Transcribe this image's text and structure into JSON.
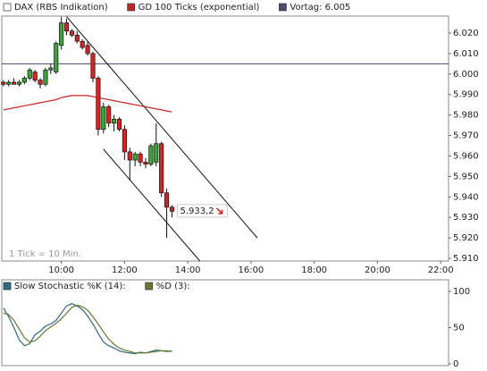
{
  "chart_data": [
    {
      "type": "candlestick",
      "ohlc": {
        "name": "DAX (RBS Indikation)",
        "up_color": "#33a833",
        "down_color": "#e02020",
        "open": [
          5996,
          5995,
          5996,
          5995,
          5996,
          5998,
          6001,
          5997,
          5995,
          6002,
          6001,
          6014,
          6025,
          6021,
          6019,
          6016,
          6014,
          6010,
          5998,
          5973,
          5984,
          5976,
          5978,
          5973,
          5962,
          5958,
          5961,
          5957,
          5956,
          5957,
          5966,
          5942,
          5935
        ],
        "high": [
          5997,
          5997,
          5998,
          5997,
          5999,
          6003,
          6002,
          5998,
          6003,
          6005,
          6016,
          6028,
          6027,
          6022,
          6021,
          6017,
          6016,
          6011,
          5999,
          5986,
          5985,
          5980,
          5979,
          5975,
          5964,
          5962,
          5962,
          5959,
          5966,
          5976,
          5967,
          5944,
          5936
        ],
        "low": [
          5994,
          5994,
          5995,
          5994,
          5995,
          5997,
          5996,
          5993,
          5994,
          6000,
          6000,
          6012,
          6019,
          6018,
          6015,
          6012,
          6009,
          5996,
          5970,
          5971,
          5974,
          5972,
          5972,
          5958,
          5948,
          5955,
          5955,
          5954,
          5955,
          5955,
          5940,
          5920,
          5930
        ],
        "close": [
          5995,
          5996,
          5995,
          5996,
          5998,
          6002,
          5997,
          5995,
          6002,
          6003,
          6015,
          6025,
          6021,
          6019,
          6016,
          6013,
          6010,
          5998,
          5973,
          5984,
          5976,
          5978,
          5973,
          5962,
          5958,
          5961,
          5957,
          5956,
          5965,
          5966,
          5942,
          5935,
          5933
        ]
      },
      "x": [
        "08:10",
        "08:20",
        "08:30",
        "08:40",
        "08:50",
        "09:00",
        "09:10",
        "09:20",
        "09:30",
        "09:40",
        "09:50",
        "10:00",
        "10:10",
        "10:20",
        "10:30",
        "10:40",
        "10:50",
        "11:00",
        "11:10",
        "11:20",
        "11:30",
        "11:40",
        "11:50",
        "12:00",
        "12:10",
        "12:20",
        "12:30",
        "12:40",
        "12:50",
        "13:00",
        "13:10",
        "13:20",
        "13:30"
      ],
      "series": [
        {
          "name": "GD 100 Ticks (exponential)",
          "color": "#cc2222",
          "values": [
            5982.5,
            5983,
            5983.5,
            5984,
            5984.5,
            5985,
            5985.5,
            5986,
            5986.5,
            5987,
            5987.5,
            5988.5,
            5989,
            5989.5,
            5989.5,
            5989.5,
            5989.5,
            5989,
            5988.5,
            5988,
            5987.5,
            5987,
            5986.5,
            5986,
            5985.5,
            5985,
            5984.5,
            5984,
            5983.5,
            5983,
            5982.5,
            5982,
            5981.5
          ]
        }
      ],
      "reference_line": {
        "name": "Vortag: 6.005",
        "value": 6005,
        "color": "#4a4a6a"
      },
      "trendlines": [
        {
          "x": [
            "10:10",
            "16:12"
          ],
          "values": [
            6028,
            5920
          ]
        },
        {
          "x": [
            "11:20",
            "14:23"
          ],
          "values": [
            5963.3,
            5908.7
          ]
        }
      ],
      "last_price": {
        "value": 5933.2,
        "label": "5.933,2"
      },
      "note": "1 Tick = 10 Min.",
      "xlim": [
        "08:07",
        "22:15"
      ],
      "xticks": [
        "10:00",
        "12:00",
        "14:00",
        "16:00",
        "18:00",
        "20:00",
        "22:00"
      ],
      "ylim": [
        5908.7,
        6028.3
      ],
      "yticks": [
        {
          "value": 5910,
          "label": "5.910"
        },
        {
          "value": 5920,
          "label": "5.920"
        },
        {
          "value": 5930,
          "label": "5.930"
        },
        {
          "value": 5940,
          "label": "5.940"
        },
        {
          "value": 5950,
          "label": "5.950"
        },
        {
          "value": 5960,
          "label": "5.960"
        },
        {
          "value": 5970,
          "label": "5.970"
        },
        {
          "value": 5980,
          "label": "5.980"
        },
        {
          "value": 5990,
          "label": "5.990"
        },
        {
          "value": 6000,
          "label": "6.000"
        },
        {
          "value": 6010,
          "label": "6.010"
        },
        {
          "value": 6020,
          "label": "6.020"
        }
      ]
    },
    {
      "type": "line",
      "x": [
        "08:10",
        "08:20",
        "08:30",
        "08:40",
        "08:50",
        "09:00",
        "09:10",
        "09:20",
        "09:30",
        "09:40",
        "09:50",
        "10:00",
        "10:10",
        "10:20",
        "10:30",
        "10:40",
        "10:50",
        "11:00",
        "11:10",
        "11:20",
        "11:30",
        "11:40",
        "11:50",
        "12:00",
        "12:10",
        "12:20",
        "12:30",
        "12:40",
        "12:50",
        "13:00",
        "13:10",
        "13:20",
        "13:30"
      ],
      "series": [
        {
          "name": "Slow Stochastic %K (14):",
          "color": "#2a6a8a",
          "values": [
            77,
            65,
            50,
            33,
            25,
            28,
            40,
            45,
            52,
            55,
            60,
            70,
            80,
            83,
            80,
            75,
            66,
            55,
            42,
            30,
            25,
            22,
            18,
            16,
            15,
            14,
            16,
            15,
            17,
            19,
            18,
            17,
            18
          ]
        },
        {
          "name": "%D (3):",
          "color": "#6a7a2a",
          "values": [
            70,
            68,
            60,
            48,
            36,
            30,
            32,
            38,
            46,
            51,
            56,
            62,
            70,
            78,
            81,
            79,
            74,
            65,
            55,
            44,
            34,
            27,
            22,
            19,
            17,
            15,
            15,
            15,
            16,
            17,
            18,
            18,
            17
          ]
        }
      ],
      "xlim": [
        "08:07",
        "22:15"
      ],
      "ylim": [
        -2.5,
        116
      ],
      "yticks": [
        0,
        50,
        100
      ]
    }
  ]
}
